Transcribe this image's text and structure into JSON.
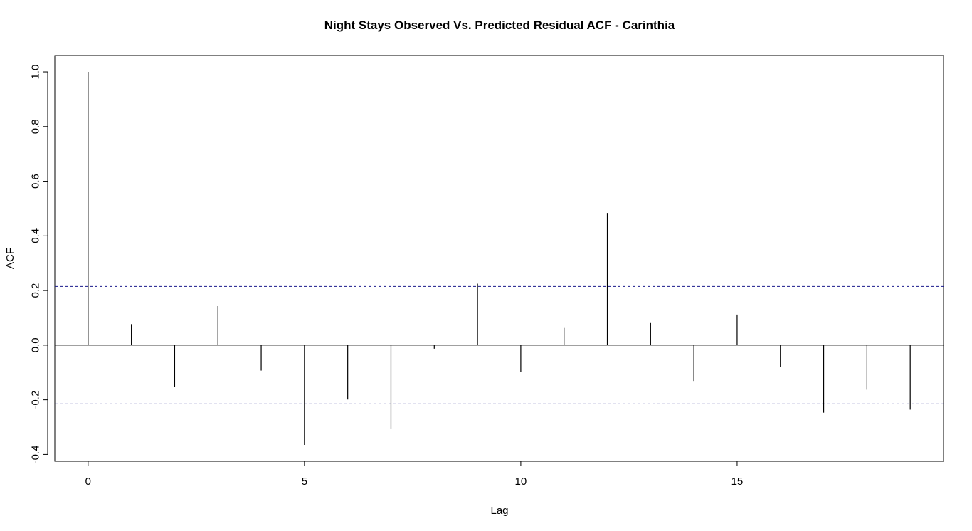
{
  "chart_data": {
    "type": "bar",
    "title": "Night Stays Observed Vs. Predicted Residual ACF - Carinthia",
    "xlabel": "Lag",
    "ylabel": "ACF",
    "x": [
      0,
      1,
      2,
      3,
      4,
      5,
      6,
      7,
      8,
      9,
      10,
      11,
      12,
      13,
      14,
      15,
      16,
      17,
      18,
      19
    ],
    "values": [
      1.0,
      0.077,
      -0.152,
      0.143,
      -0.093,
      -0.365,
      -0.199,
      -0.305,
      -0.013,
      0.225,
      -0.097,
      0.063,
      0.484,
      0.081,
      -0.131,
      0.112,
      -0.079,
      -0.247,
      -0.163,
      -0.236
    ],
    "xlim": [
      -0.77,
      19.77
    ],
    "ylim": [
      -0.425,
      1.06
    ],
    "xticks": [
      0,
      5,
      10,
      15
    ],
    "xtick_labels": [
      "0",
      "5",
      "10",
      "15"
    ],
    "yticks": [
      -0.4,
      -0.2,
      0.0,
      0.2,
      0.4,
      0.6,
      0.8,
      1.0
    ],
    "ytick_labels": [
      "-0.4",
      "-0.2",
      "0.0",
      "0.2",
      "0.4",
      "0.6",
      "0.8",
      "1.0"
    ],
    "confidence_bound": 0.215,
    "colors": {
      "bars": "#000000",
      "confidence": "#1a1a8c",
      "axes": "#000000"
    },
    "grid": false,
    "legend": "none"
  }
}
